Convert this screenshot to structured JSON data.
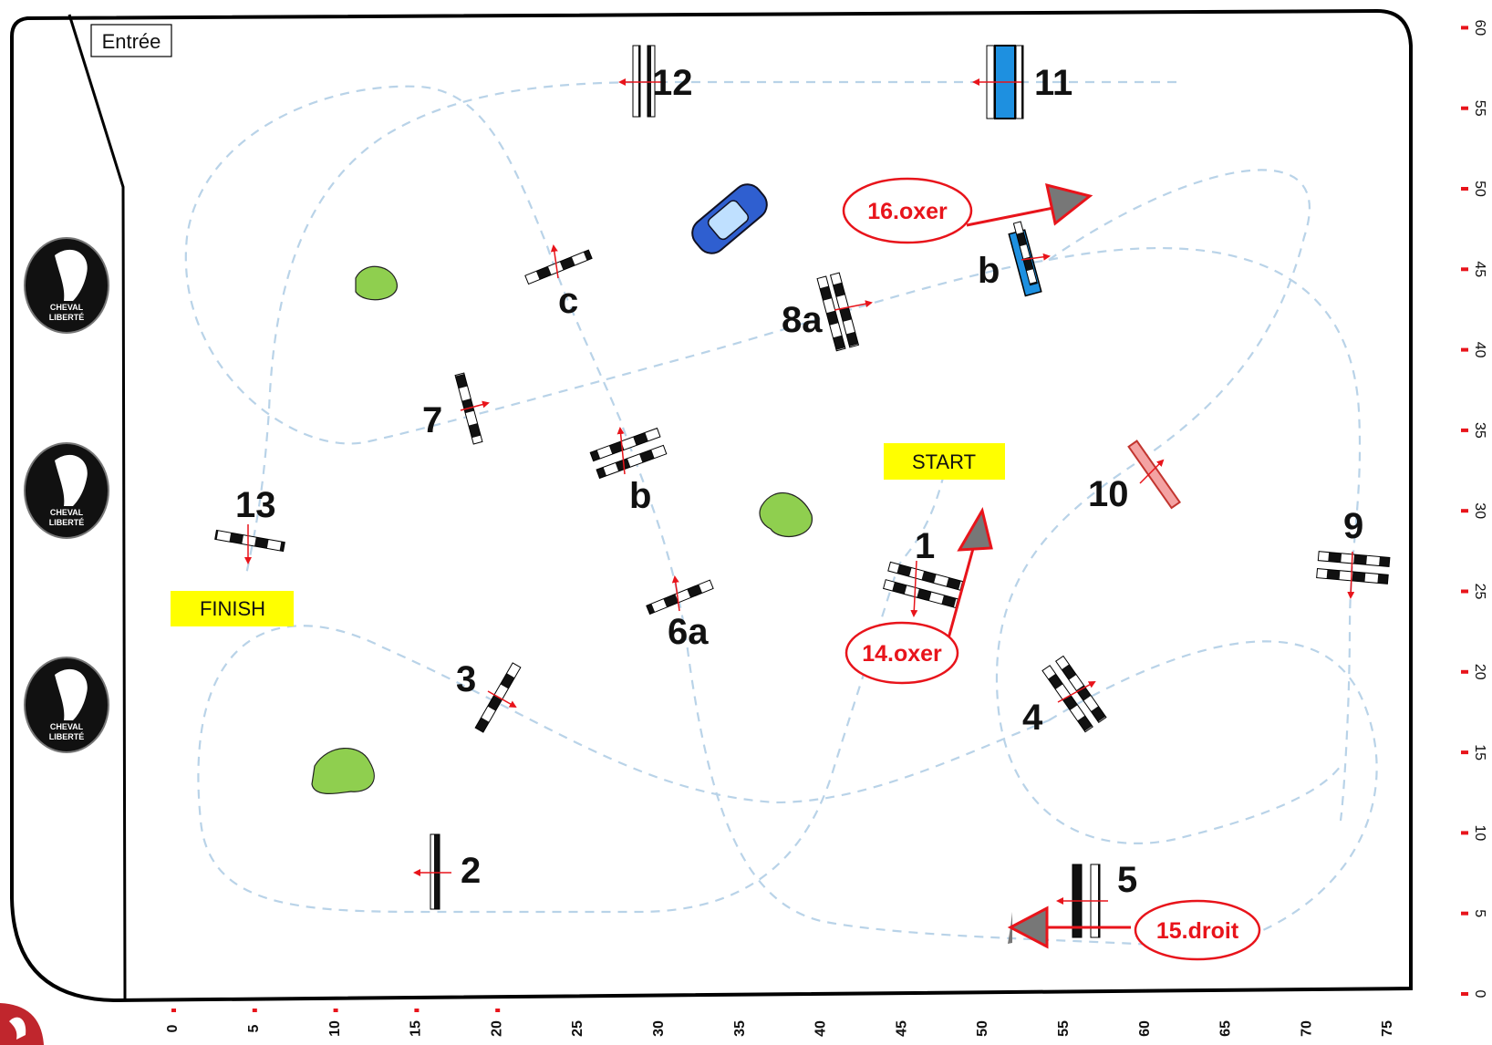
{
  "entry_label": "Entrée",
  "start_label": "START",
  "finish_label": "FINISH",
  "logo_text": [
    "CHEVAL",
    "LIBERTÉ"
  ],
  "obstacles": [
    {
      "label": "1"
    },
    {
      "label": "2"
    },
    {
      "label": "3"
    },
    {
      "label": "4"
    },
    {
      "label": "5"
    },
    {
      "label": "6a"
    },
    {
      "label": "b"
    },
    {
      "label": "c"
    },
    {
      "label": "7"
    },
    {
      "label": "8a"
    },
    {
      "label": "b"
    },
    {
      "label": "9"
    },
    {
      "label": "10"
    },
    {
      "label": "11"
    },
    {
      "label": "12"
    },
    {
      "label": "13"
    }
  ],
  "jump_off": [
    "14.oxer",
    "15.droit",
    "16.oxer"
  ],
  "y_ticks": [
    "0",
    "5",
    "10",
    "15",
    "20",
    "25",
    "30",
    "35",
    "40",
    "45",
    "50",
    "55",
    "60"
  ],
  "x_ticks": [
    "0",
    "5",
    "10",
    "15",
    "20",
    "25",
    "30",
    "35",
    "40",
    "45",
    "50",
    "55",
    "60",
    "65",
    "70",
    "75"
  ],
  "colors": {
    "route": "#b9d3e8",
    "jump_off": "#e8141b",
    "label_bg": "#ffff00",
    "tree": "#8fcf4f",
    "water": "#1e90e0"
  }
}
